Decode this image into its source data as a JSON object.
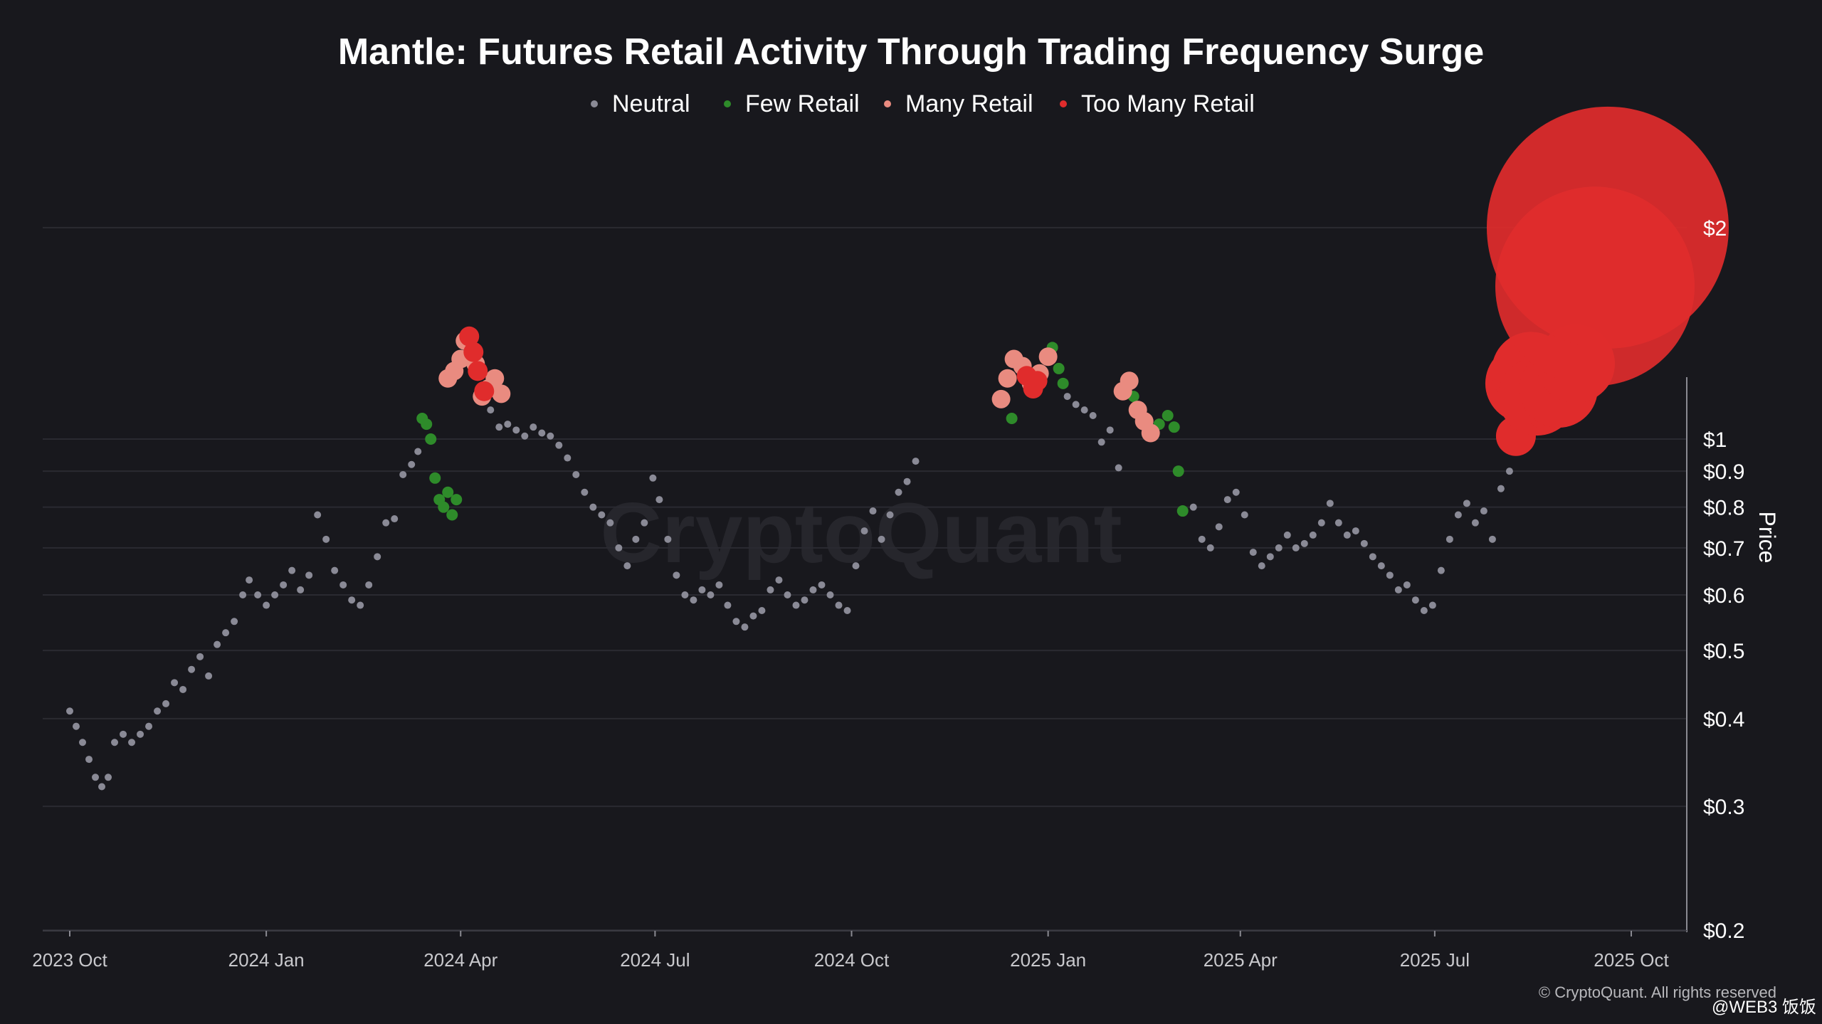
{
  "chart_data": {
    "type": "scatter",
    "title": "Mantle: Futures Retail Activity Through Trading Frequency Surge",
    "ylabel": "Price",
    "y_scale": "log",
    "ylim": [
      0.2,
      2.2
    ],
    "xlim": [
      "2023-09-25",
      "2025-10-20"
    ],
    "grid": "horizontal",
    "legend_position": "top-center",
    "watermark": "CryptoQuant",
    "credit": "© CryptoQuant. All rights reserved",
    "overlay_credit": "@WEB3 饭饭",
    "x_ticks": [
      {
        "label": "2023 Oct",
        "date": "2023-10-01"
      },
      {
        "label": "2024 Jan",
        "date": "2024-01-01"
      },
      {
        "label": "2024 Apr",
        "date": "2024-04-01"
      },
      {
        "label": "2024 Jul",
        "date": "2024-07-01"
      },
      {
        "label": "2024 Oct",
        "date": "2024-10-01"
      },
      {
        "label": "2025 Jan",
        "date": "2025-01-01"
      },
      {
        "label": "2025 Apr",
        "date": "2025-04-01"
      },
      {
        "label": "2025 Jul",
        "date": "2025-07-01"
      },
      {
        "label": "2025 Oct",
        "date": "2025-10-01"
      }
    ],
    "y_ticks": [
      {
        "label": "$0.2",
        "value": 0.2
      },
      {
        "label": "$0.3",
        "value": 0.3
      },
      {
        "label": "$0.4",
        "value": 0.4
      },
      {
        "label": "$0.5",
        "value": 0.5
      },
      {
        "label": "$0.6",
        "value": 0.6
      },
      {
        "label": "$0.7",
        "value": 0.7
      },
      {
        "label": "$0.8",
        "value": 0.8
      },
      {
        "label": "$0.9",
        "value": 0.9
      },
      {
        "label": "$1",
        "value": 1
      },
      {
        "label": "$2",
        "value": 2
      }
    ],
    "series": [
      {
        "name": "Neutral",
        "color": "#8a8a96",
        "points": [
          [
            "2023-10-01",
            0.41
          ],
          [
            "2023-10-04",
            0.39
          ],
          [
            "2023-10-07",
            0.37
          ],
          [
            "2023-10-10",
            0.35
          ],
          [
            "2023-10-13",
            0.33
          ],
          [
            "2023-10-16",
            0.32
          ],
          [
            "2023-10-19",
            0.33
          ],
          [
            "2023-10-22",
            0.37
          ],
          [
            "2023-10-26",
            0.38
          ],
          [
            "2023-10-30",
            0.37
          ],
          [
            "2023-11-03",
            0.38
          ],
          [
            "2023-11-07",
            0.39
          ],
          [
            "2023-11-11",
            0.41
          ],
          [
            "2023-11-15",
            0.42
          ],
          [
            "2023-11-19",
            0.45
          ],
          [
            "2023-11-23",
            0.44
          ],
          [
            "2023-11-27",
            0.47
          ],
          [
            "2023-12-01",
            0.49
          ],
          [
            "2023-12-05",
            0.46
          ],
          [
            "2023-12-09",
            0.51
          ],
          [
            "2023-12-13",
            0.53
          ],
          [
            "2023-12-17",
            0.55
          ],
          [
            "2023-12-21",
            0.6
          ],
          [
            "2023-12-24",
            0.63
          ],
          [
            "2023-12-28",
            0.6
          ],
          [
            "2024-01-01",
            0.58
          ],
          [
            "2024-01-05",
            0.6
          ],
          [
            "2024-01-09",
            0.62
          ],
          [
            "2024-01-13",
            0.65
          ],
          [
            "2024-01-17",
            0.61
          ],
          [
            "2024-01-21",
            0.64
          ],
          [
            "2024-01-25",
            0.78
          ],
          [
            "2024-01-29",
            0.72
          ],
          [
            "2024-02-02",
            0.65
          ],
          [
            "2024-02-06",
            0.62
          ],
          [
            "2024-02-10",
            0.59
          ],
          [
            "2024-02-14",
            0.58
          ],
          [
            "2024-02-18",
            0.62
          ],
          [
            "2024-02-22",
            0.68
          ],
          [
            "2024-02-26",
            0.76
          ],
          [
            "2024-03-01",
            0.77
          ],
          [
            "2024-03-05",
            0.89
          ],
          [
            "2024-03-09",
            0.92
          ],
          [
            "2024-03-12",
            0.96
          ],
          [
            "2024-04-15",
            1.1
          ],
          [
            "2024-04-19",
            1.04
          ],
          [
            "2024-04-23",
            1.05
          ],
          [
            "2024-04-27",
            1.03
          ],
          [
            "2024-05-01",
            1.01
          ],
          [
            "2024-05-05",
            1.04
          ],
          [
            "2024-05-09",
            1.02
          ],
          [
            "2024-05-13",
            1.01
          ],
          [
            "2024-05-17",
            0.98
          ],
          [
            "2024-05-21",
            0.94
          ],
          [
            "2024-05-25",
            0.89
          ],
          [
            "2024-05-29",
            0.84
          ],
          [
            "2024-06-02",
            0.8
          ],
          [
            "2024-06-06",
            0.78
          ],
          [
            "2024-06-10",
            0.76
          ],
          [
            "2024-06-14",
            0.7
          ],
          [
            "2024-06-18",
            0.66
          ],
          [
            "2024-06-22",
            0.72
          ],
          [
            "2024-06-26",
            0.76
          ],
          [
            "2024-06-30",
            0.88
          ],
          [
            "2024-07-03",
            0.82
          ],
          [
            "2024-07-07",
            0.72
          ],
          [
            "2024-07-11",
            0.64
          ],
          [
            "2024-07-15",
            0.6
          ],
          [
            "2024-07-19",
            0.59
          ],
          [
            "2024-07-23",
            0.61
          ],
          [
            "2024-07-27",
            0.6
          ],
          [
            "2024-07-31",
            0.62
          ],
          [
            "2024-08-04",
            0.58
          ],
          [
            "2024-08-08",
            0.55
          ],
          [
            "2024-08-12",
            0.54
          ],
          [
            "2024-08-16",
            0.56
          ],
          [
            "2024-08-20",
            0.57
          ],
          [
            "2024-08-24",
            0.61
          ],
          [
            "2024-08-28",
            0.63
          ],
          [
            "2024-09-01",
            0.6
          ],
          [
            "2024-09-05",
            0.58
          ],
          [
            "2024-09-09",
            0.59
          ],
          [
            "2024-09-13",
            0.61
          ],
          [
            "2024-09-17",
            0.62
          ],
          [
            "2024-09-21",
            0.6
          ],
          [
            "2024-09-25",
            0.58
          ],
          [
            "2024-09-29",
            0.57
          ],
          [
            "2024-10-03",
            0.66
          ],
          [
            "2024-10-07",
            0.74
          ],
          [
            "2024-10-11",
            0.79
          ],
          [
            "2024-10-15",
            0.72
          ],
          [
            "2024-10-19",
            0.78
          ],
          [
            "2024-10-23",
            0.84
          ],
          [
            "2024-10-27",
            0.87
          ],
          [
            "2024-10-31",
            0.93
          ],
          [
            "2025-01-10",
            1.15
          ],
          [
            "2025-01-14",
            1.12
          ],
          [
            "2025-01-18",
            1.1
          ],
          [
            "2025-01-22",
            1.08
          ],
          [
            "2025-01-26",
            0.99
          ],
          [
            "2025-01-30",
            1.03
          ],
          [
            "2025-02-03",
            0.91
          ],
          [
            "2025-03-10",
            0.8
          ],
          [
            "2025-03-14",
            0.72
          ],
          [
            "2025-03-18",
            0.7
          ],
          [
            "2025-03-22",
            0.75
          ],
          [
            "2025-03-26",
            0.82
          ],
          [
            "2025-03-30",
            0.84
          ],
          [
            "2025-04-03",
            0.78
          ],
          [
            "2025-04-07",
            0.69
          ],
          [
            "2025-04-11",
            0.66
          ],
          [
            "2025-04-15",
            0.68
          ],
          [
            "2025-04-19",
            0.7
          ],
          [
            "2025-04-23",
            0.73
          ],
          [
            "2025-04-27",
            0.7
          ],
          [
            "2025-05-01",
            0.71
          ],
          [
            "2025-05-05",
            0.73
          ],
          [
            "2025-05-09",
            0.76
          ],
          [
            "2025-05-13",
            0.81
          ],
          [
            "2025-05-17",
            0.76
          ],
          [
            "2025-05-21",
            0.73
          ],
          [
            "2025-05-25",
            0.74
          ],
          [
            "2025-05-29",
            0.71
          ],
          [
            "2025-06-02",
            0.68
          ],
          [
            "2025-06-06",
            0.66
          ],
          [
            "2025-06-10",
            0.64
          ],
          [
            "2025-06-14",
            0.61
          ],
          [
            "2025-06-18",
            0.62
          ],
          [
            "2025-06-22",
            0.59
          ],
          [
            "2025-06-26",
            0.57
          ],
          [
            "2025-06-30",
            0.58
          ],
          [
            "2025-07-04",
            0.65
          ],
          [
            "2025-07-08",
            0.72
          ],
          [
            "2025-07-12",
            0.78
          ],
          [
            "2025-07-16",
            0.81
          ],
          [
            "2025-07-20",
            0.76
          ],
          [
            "2025-07-24",
            0.79
          ],
          [
            "2025-07-28",
            0.72
          ],
          [
            "2025-08-01",
            0.85
          ],
          [
            "2025-08-05",
            0.9
          ]
        ]
      },
      {
        "name": "Few Retail",
        "color": "#2e8b2a",
        "points": [
          [
            "2024-03-14",
            1.07
          ],
          [
            "2024-03-16",
            1.05
          ],
          [
            "2024-03-18",
            1.0
          ],
          [
            "2024-03-20",
            0.88
          ],
          [
            "2024-03-22",
            0.82
          ],
          [
            "2024-03-24",
            0.8
          ],
          [
            "2024-03-26",
            0.84
          ],
          [
            "2024-03-28",
            0.78
          ],
          [
            "2024-03-30",
            0.82
          ],
          [
            "2024-12-15",
            1.07
          ],
          [
            "2025-01-03",
            1.35
          ],
          [
            "2025-01-06",
            1.26
          ],
          [
            "2025-01-08",
            1.2
          ],
          [
            "2025-02-10",
            1.15
          ],
          [
            "2025-02-22",
            1.05
          ],
          [
            "2025-02-26",
            1.08
          ],
          [
            "2025-03-01",
            1.04
          ],
          [
            "2025-03-03",
            0.9
          ],
          [
            "2025-03-05",
            0.79
          ]
        ]
      },
      {
        "name": "Many Retail",
        "color": "#e98b80",
        "points": [
          [
            "2024-03-26",
            1.22
          ],
          [
            "2024-03-29",
            1.25
          ],
          [
            "2024-04-01",
            1.3
          ],
          [
            "2024-04-03",
            1.38
          ],
          [
            "2024-04-08",
            1.28
          ],
          [
            "2024-04-11",
            1.15
          ],
          [
            "2024-04-14",
            1.18
          ],
          [
            "2024-04-17",
            1.22
          ],
          [
            "2024-04-20",
            1.16
          ],
          [
            "2024-12-10",
            1.14
          ],
          [
            "2024-12-13",
            1.22
          ],
          [
            "2024-12-16",
            1.3
          ],
          [
            "2024-12-20",
            1.27
          ],
          [
            "2024-12-24",
            1.2
          ],
          [
            "2024-12-28",
            1.24
          ],
          [
            "2025-01-01",
            1.31
          ],
          [
            "2025-02-05",
            1.17
          ],
          [
            "2025-02-08",
            1.21
          ],
          [
            "2025-02-12",
            1.1
          ],
          [
            "2025-02-15",
            1.06
          ],
          [
            "2025-02-18",
            1.02
          ]
        ]
      },
      {
        "name": "Too Many Retail",
        "color": "#e02c2c",
        "points": [
          [
            "2024-04-05",
            1.4
          ],
          [
            "2024-04-07",
            1.33
          ],
          [
            "2024-04-09",
            1.25
          ],
          [
            "2024-04-12",
            1.17
          ],
          [
            "2024-12-22",
            1.23
          ],
          [
            "2024-12-25",
            1.18
          ],
          [
            "2024-12-27",
            1.21
          ],
          [
            "2025-08-08",
            1.01
          ],
          [
            "2025-08-10",
            1.12
          ],
          [
            "2025-08-12",
            1.2
          ],
          [
            "2025-08-15",
            1.25
          ],
          [
            "2025-08-18",
            1.15
          ],
          [
            "2025-08-22",
            1.1
          ],
          [
            "2025-08-28",
            1.18
          ],
          [
            "2025-09-05",
            1.28
          ],
          [
            "2025-09-14",
            1.65
          ],
          [
            "2025-09-20",
            2.0
          ]
        ]
      }
    ]
  }
}
